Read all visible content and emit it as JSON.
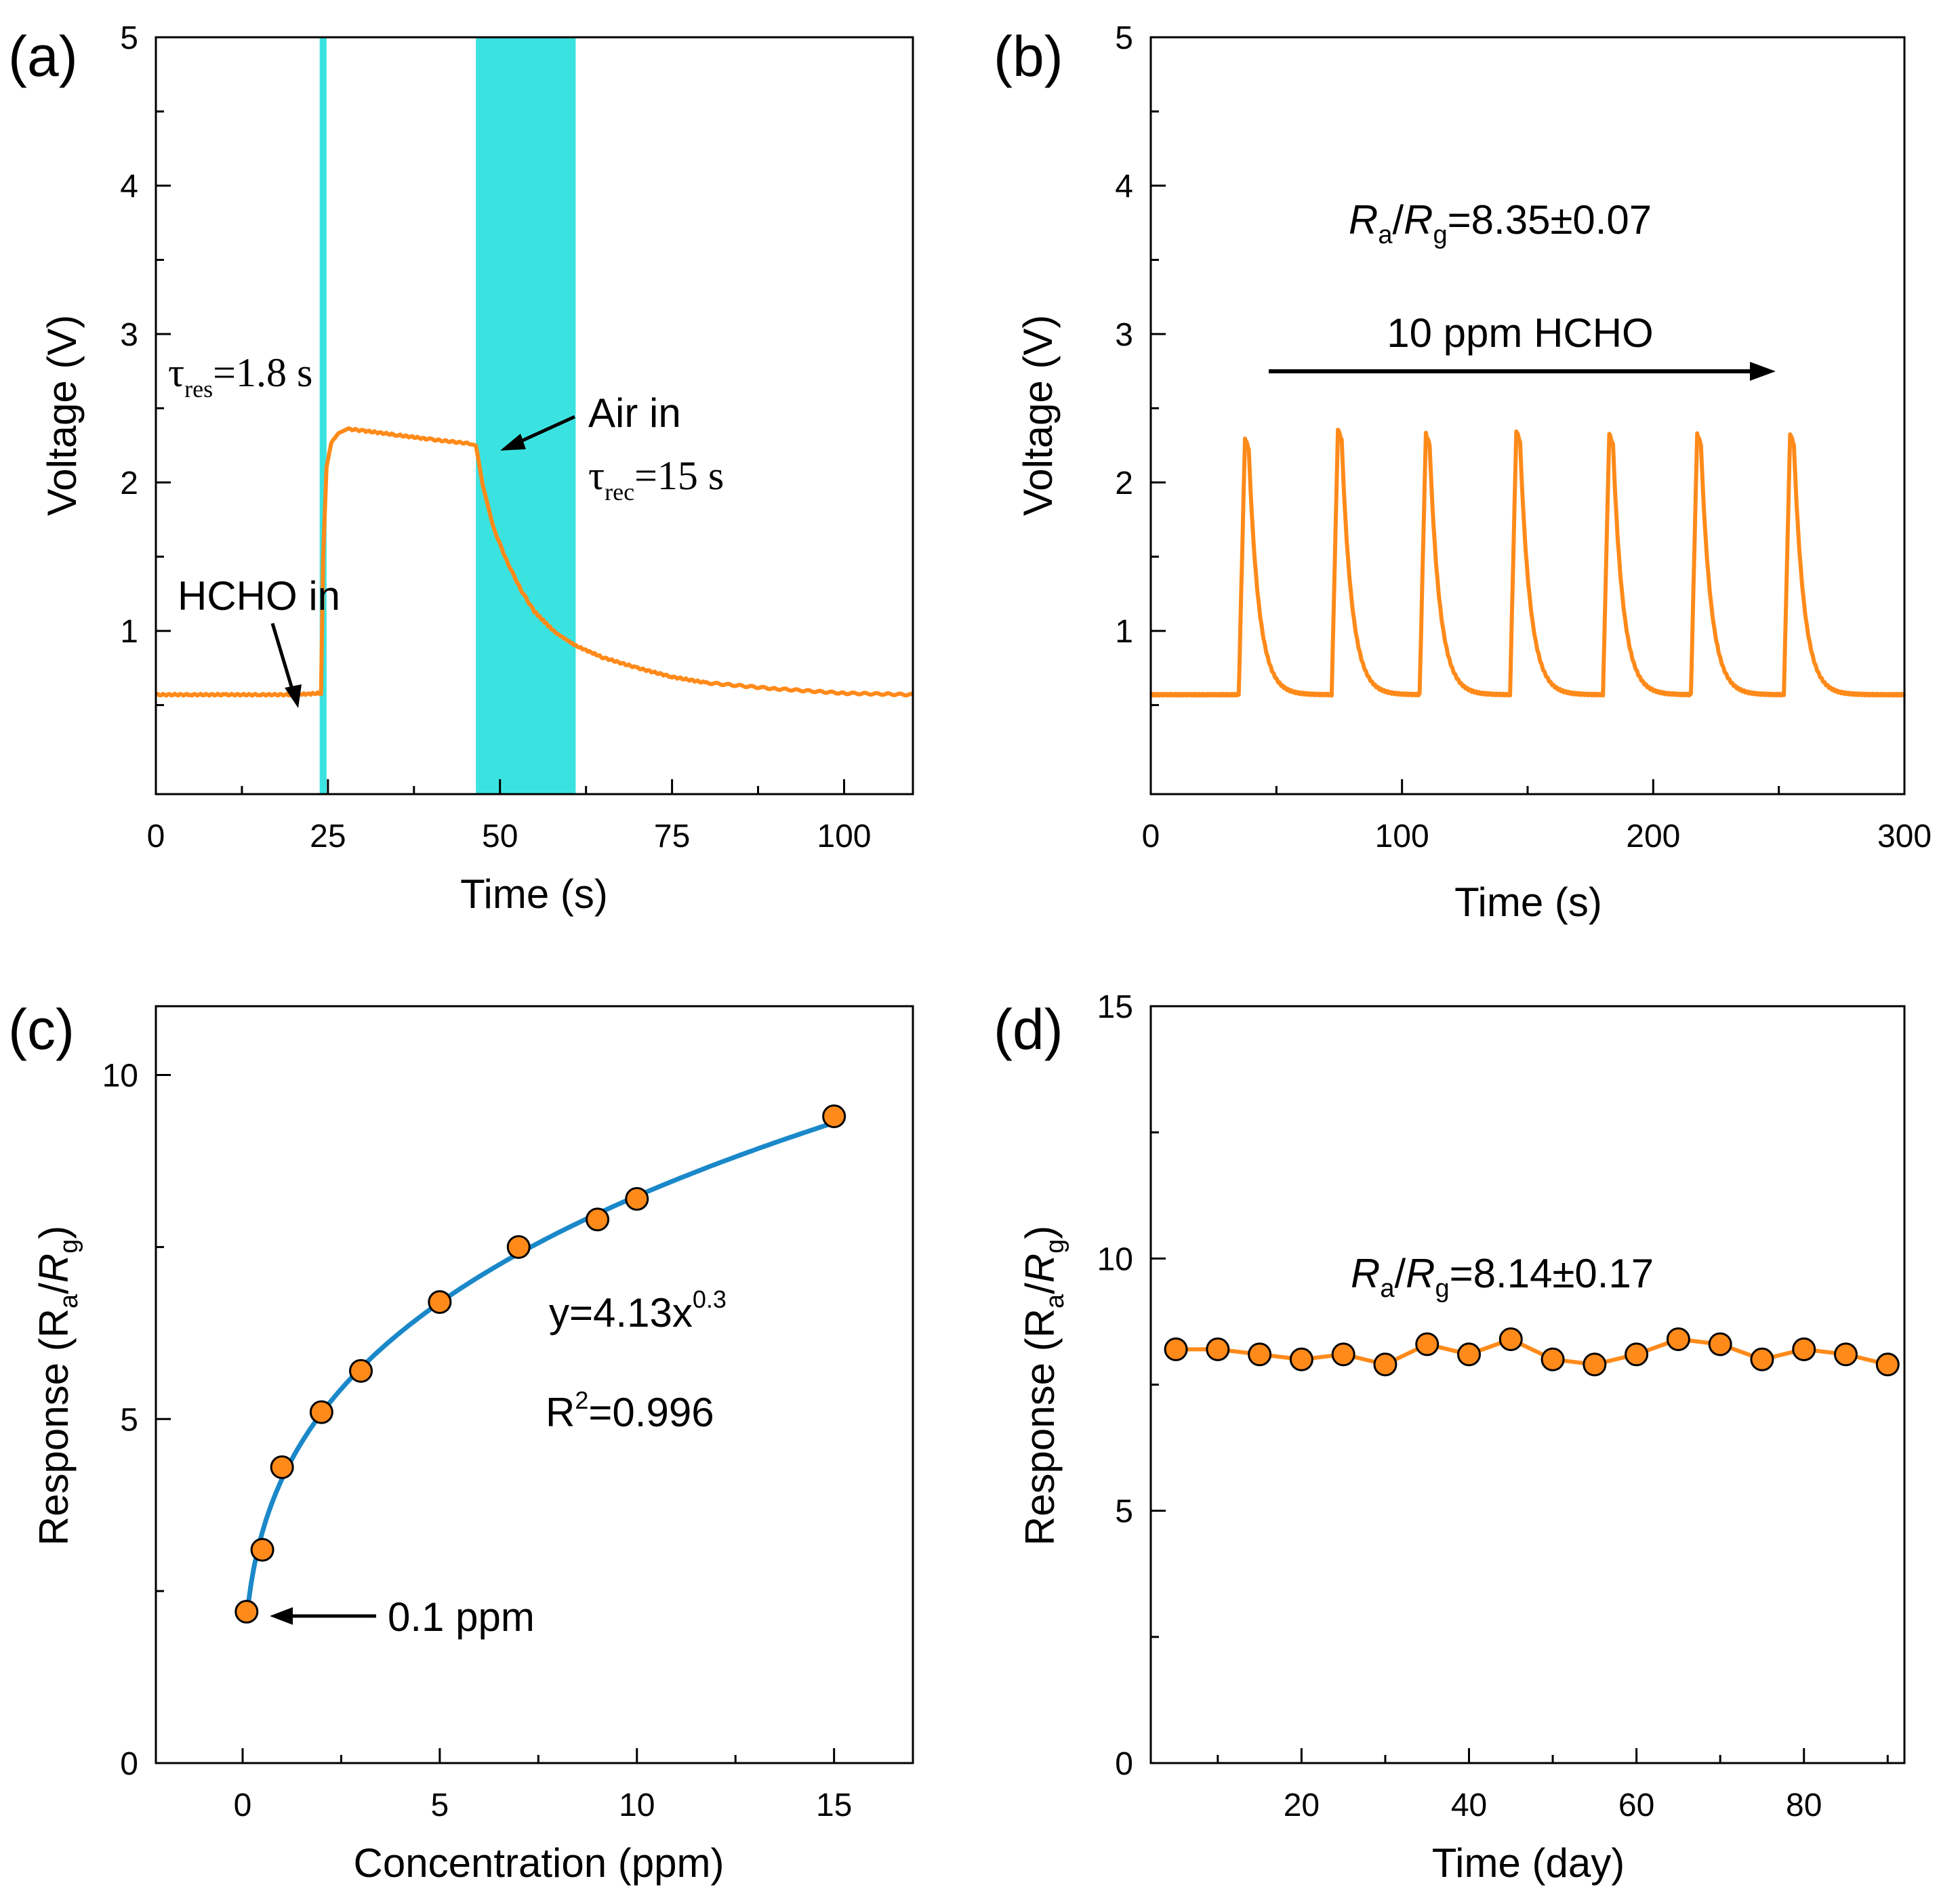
{
  "colors": {
    "line": "#FF8A1A",
    "marker": "#FF8A1A",
    "fit": "#1A88C9",
    "band": "#3BE3E0",
    "axis": "#000000"
  },
  "chart_data": [
    {
      "panel": "(a)",
      "type": "line",
      "xlabel": "Time (s)",
      "ylabel": "Voltage (V)",
      "xlim": [
        0,
        110
      ],
      "ylim": [
        -0.1,
        5
      ],
      "x_ticks": [
        0,
        25,
        50,
        75,
        100
      ],
      "x_tick_labels": [
        "0",
        "25",
        "50",
        "75",
        "100"
      ],
      "y_ticks": [
        1,
        2,
        3,
        4,
        5
      ],
      "y_tick_labels": [
        "1",
        "2",
        "3",
        "4",
        "5"
      ],
      "bands": [
        {
          "x_start": 23.8,
          "x_end": 24.8
        },
        {
          "x_start": 46.5,
          "x_end": 61.0
        }
      ],
      "series": [
        {
          "name": "Voltage",
          "x": [
            0,
            5,
            10,
            15,
            20,
            24,
            24.3,
            24.8,
            25.5,
            26.5,
            28,
            30,
            35,
            40,
            46,
            46.5,
            47.5,
            49,
            51,
            53,
            55,
            58,
            61,
            65,
            70,
            75,
            80,
            90,
            100,
            110
          ],
          "y": [
            0.57,
            0.57,
            0.57,
            0.57,
            0.57,
            0.58,
            1.5,
            2.1,
            2.27,
            2.33,
            2.36,
            2.35,
            2.32,
            2.29,
            2.26,
            2.25,
            1.98,
            1.7,
            1.47,
            1.28,
            1.13,
            0.99,
            0.9,
            0.82,
            0.75,
            0.69,
            0.65,
            0.61,
            0.58,
            0.57
          ]
        }
      ],
      "annotations": {
        "tau_res_symbol": "τ",
        "tau_res_sub": "res",
        "tau_res_value": "=1.8 s",
        "air_in": "Air in",
        "tau_rec_symbol": "τ",
        "tau_rec_sub": "rec",
        "tau_rec_value": "=15 s",
        "hcho_in": "HCHO in"
      }
    },
    {
      "panel": "(b)",
      "type": "line",
      "xlabel": "Time (s)",
      "ylabel": "Voltage (V)",
      "xlim": [
        0,
        300
      ],
      "ylim": [
        -0.1,
        5
      ],
      "x_ticks": [
        0,
        100,
        200,
        300
      ],
      "x_tick_labels": [
        "0",
        "100",
        "200",
        "300"
      ],
      "y_ticks": [
        1,
        2,
        3,
        4,
        5
      ],
      "y_tick_labels": [
        "1",
        "2",
        "3",
        "4",
        "5"
      ],
      "cycles": {
        "baseline": 0.57,
        "rise_times": [
          35,
          72,
          107,
          143,
          180,
          215,
          252
        ],
        "peaks": [
          2.3,
          2.36,
          2.33,
          2.35,
          2.33,
          2.33,
          2.33
        ],
        "fall_offsets": [
          4,
          4,
          4,
          4,
          4,
          4,
          4
        ]
      },
      "annotations": {
        "ratio_R": "R",
        "ratio_sub_a": "a",
        "ratio_sub_g": "g",
        "ratio_value": "=8.35±0.07",
        "arrow_label": "10 ppm HCHO"
      }
    },
    {
      "panel": "(c)",
      "type": "scatter",
      "xlabel": "Concentration (ppm)",
      "ylabel": "Response (R",
      "ylabel_sub_a": "a",
      "ylabel_R_g": "R",
      "ylabel_sub_g": "g",
      "xlim": [
        -2.2,
        17
      ],
      "ylim": [
        0,
        11
      ],
      "x_ticks": [
        0,
        5,
        10,
        15
      ],
      "x_tick_labels": [
        "0",
        "5",
        "10",
        "15"
      ],
      "y_ticks": [
        0,
        5,
        10
      ],
      "y_tick_labels": [
        "0",
        "5",
        "10"
      ],
      "x": [
        0.1,
        0.5,
        1,
        2,
        3,
        5,
        7,
        9,
        10,
        15
      ],
      "y": [
        2.2,
        3.1,
        4.3,
        5.1,
        5.7,
        6.7,
        7.5,
        7.9,
        8.2,
        9.4
      ],
      "fit": {
        "a": 4.13,
        "b": 0.3,
        "x_start": 0.1,
        "x_end": 15
      },
      "annotations": {
        "equation_base": "y=4.13x",
        "equation_exp": "0.3",
        "r2_base": "R",
        "r2_exp": "2",
        "r2_value": "=0.996",
        "min_label": "0.1 ppm"
      }
    },
    {
      "panel": "(d)",
      "type": "line",
      "xlabel": "Time (day)",
      "ylabel": "Response (R",
      "ylabel_sub_a": "a",
      "ylabel_R_g": "R",
      "ylabel_sub_g": "g",
      "xlim": [
        2,
        92
      ],
      "ylim": [
        0,
        15
      ],
      "x_ticks": [
        20,
        40,
        60,
        80
      ],
      "x_tick_labels": [
        "20",
        "40",
        "60",
        "80"
      ],
      "y_ticks": [
        0,
        5,
        10,
        15
      ],
      "y_tick_labels": [
        "0",
        "5",
        "10",
        "15"
      ],
      "x": [
        5,
        10,
        15,
        20,
        25,
        30,
        35,
        40,
        45,
        50,
        55,
        60,
        65,
        70,
        75,
        80,
        85,
        90
      ],
      "y": [
        8.2,
        8.2,
        8.1,
        8.0,
        8.1,
        7.9,
        8.3,
        8.1,
        8.4,
        8.0,
        7.9,
        8.1,
        8.4,
        8.3,
        8.0,
        8.2,
        8.1,
        7.9
      ],
      "annotations": {
        "ratio_R": "R",
        "ratio_sub_a": "a",
        "ratio_sub_g": "g",
        "ratio_value": "=8.14±0.17"
      }
    }
  ]
}
